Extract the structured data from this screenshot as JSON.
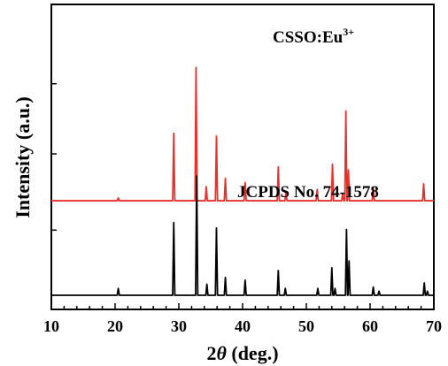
{
  "chart_data": {
    "type": "line",
    "xlabel_base": "2",
    "xlabel_theta": "θ",
    "xlabel_rest": " (deg.)",
    "ylabel": "Intensity (a.u.)",
    "xlim": [
      10,
      70
    ],
    "x_ticks": [
      "10",
      "20",
      "30",
      "40",
      "50",
      "60",
      "70"
    ],
    "y_ticks_shown": false,
    "grid": false,
    "series": [
      {
        "name": "CSSO:Eu3+",
        "label_main": "CSSO:Eu",
        "label_sup": "3+",
        "color": "#e8312b",
        "baseline_fraction": 0.31,
        "peaks": [
          {
            "x": 20.5,
            "h": 0.02
          },
          {
            "x": 29.2,
            "h": 0.48
          },
          {
            "x": 32.7,
            "h": 0.95
          },
          {
            "x": 34.3,
            "h": 0.1
          },
          {
            "x": 35.9,
            "h": 0.46
          },
          {
            "x": 37.3,
            "h": 0.16
          },
          {
            "x": 40.4,
            "h": 0.13
          },
          {
            "x": 45.6,
            "h": 0.24
          },
          {
            "x": 46.8,
            "h": 0.06
          },
          {
            "x": 51.7,
            "h": 0.08
          },
          {
            "x": 54.1,
            "h": 0.26
          },
          {
            "x": 55.7,
            "h": 0.05
          },
          {
            "x": 56.2,
            "h": 0.64
          },
          {
            "x": 56.6,
            "h": 0.22
          },
          {
            "x": 60.5,
            "h": 0.09
          },
          {
            "x": 68.4,
            "h": 0.12
          }
        ]
      },
      {
        "name": "JCPDS No. 74-1578",
        "label_main": "JCPDS No. 74-1578",
        "label_sup": "",
        "color": "#000000",
        "baseline_fraction": 0.0,
        "peaks": [
          {
            "x": 20.5,
            "h": 0.05
          },
          {
            "x": 29.2,
            "h": 0.53
          },
          {
            "x": 32.8,
            "h": 0.87
          },
          {
            "x": 34.4,
            "h": 0.08
          },
          {
            "x": 35.9,
            "h": 0.49
          },
          {
            "x": 37.3,
            "h": 0.13
          },
          {
            "x": 40.4,
            "h": 0.11
          },
          {
            "x": 45.6,
            "h": 0.18
          },
          {
            "x": 46.7,
            "h": 0.05
          },
          {
            "x": 51.8,
            "h": 0.05
          },
          {
            "x": 54.0,
            "h": 0.2
          },
          {
            "x": 54.5,
            "h": 0.05
          },
          {
            "x": 56.3,
            "h": 0.48
          },
          {
            "x": 56.7,
            "h": 0.25
          },
          {
            "x": 60.5,
            "h": 0.06
          },
          {
            "x": 61.4,
            "h": 0.03
          },
          {
            "x": 68.5,
            "h": 0.09
          },
          {
            "x": 69.0,
            "h": 0.03
          }
        ]
      }
    ]
  }
}
